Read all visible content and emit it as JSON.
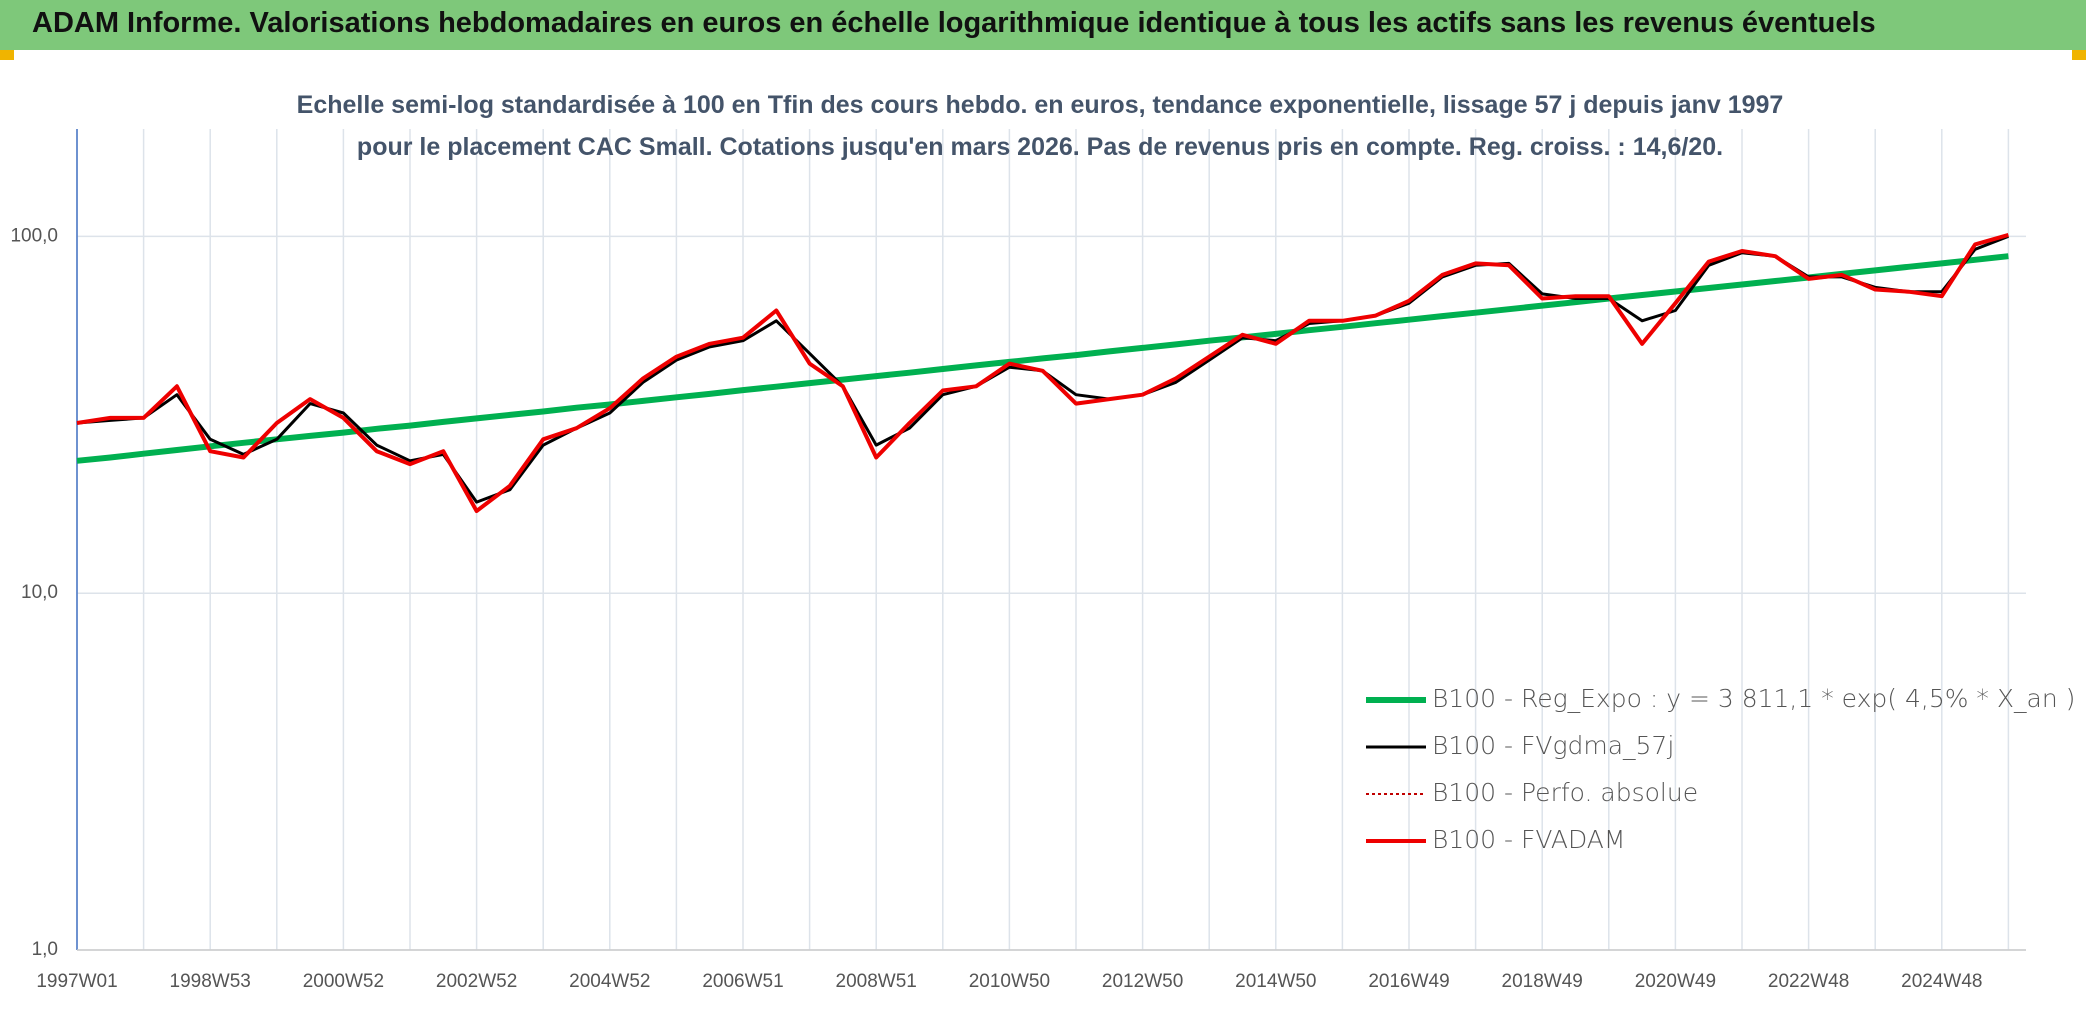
{
  "chart_data": {
    "type": "line",
    "title": "ADAM Informe. Valorisations hebdomadaires en euros en échelle logarithmique identique à tous les actifs sans les revenus éventuels",
    "subtitle": "Echelle semi-log standardisée à 100 en Tfin des cours hebdo. en euros, tendance exponentielle, lissage 57 j depuis janv 1997 pour le placement CAC Small. Cotations jusqu'en mars 2026. Pas de revenus pris en compte. Reg. croiss. : 14,6/20.",
    "categories": [
      "1997W01",
      null,
      null,
      null,
      "1998W53",
      null,
      null,
      null,
      "2000W52",
      null,
      null,
      null,
      "2002W52",
      null,
      null,
      null,
      "2004W52",
      null,
      null,
      null,
      "2006W51",
      null,
      null,
      null,
      "2008W51",
      null,
      null,
      null,
      "2010W50",
      null,
      null,
      null,
      "2012W50",
      null,
      null,
      null,
      "2014W50",
      null,
      null,
      null,
      "2016W49",
      null,
      null,
      null,
      "2018W49",
      null,
      null,
      null,
      "2020W49",
      null,
      null,
      null,
      "2022W48",
      null,
      null,
      null,
      "2024W48",
      null,
      null
    ],
    "log_scale": true,
    "ylim": [
      1,
      200
    ],
    "yticks": [
      {
        "value": 1,
        "label": "1,0"
      },
      {
        "value": 10,
        "label": "10,0"
      },
      {
        "value": 100,
        "label": "100,0"
      }
    ],
    "grid": true,
    "legend": "lower right",
    "series": [
      {
        "name": "B100 - Reg_Expo : y = 3 811,1 * exp( 4,5% *  X_an )",
        "color": "#00b050",
        "style": "solid",
        "width": 6,
        "values": [
          23.5,
          24.0,
          24.6,
          25.2,
          25.8,
          26.4,
          27.0,
          27.6,
          28.2,
          28.9,
          29.5,
          30.2,
          30.9,
          31.6,
          32.3,
          33.1,
          33.8,
          34.6,
          35.4,
          36.2,
          37.1,
          37.9,
          38.8,
          39.7,
          40.6,
          41.5,
          42.5,
          43.5,
          44.5,
          45.5,
          46.5,
          47.6,
          48.7,
          49.8,
          51.0,
          52.1,
          53.3,
          54.6,
          55.8,
          57.1,
          58.4,
          59.8,
          61.1,
          62.5,
          64.0,
          65.4,
          67.0,
          68.5,
          70.1,
          71.7,
          73.3,
          75.0,
          76.7,
          78.5,
          80.3,
          82.2,
          84.0,
          86.0,
          88.0
        ]
      },
      {
        "name": "B100 - FVgdma_57j",
        "color": "#000000",
        "style": "solid",
        "width": 3,
        "values": [
          30,
          30.5,
          31,
          36,
          27,
          24.5,
          27,
          34,
          32,
          26,
          23.5,
          24.5,
          18,
          19.5,
          26,
          29,
          32,
          39,
          45,
          49,
          51,
          58,
          47,
          38,
          26,
          29,
          36,
          38,
          43,
          42,
          36,
          35,
          36,
          39,
          45,
          52,
          51,
          57,
          58,
          60,
          65,
          77,
          83,
          84,
          69,
          67,
          67,
          58,
          62,
          83,
          90,
          88,
          77,
          77,
          72,
          70,
          70,
          92,
          100
        ]
      },
      {
        "name": "B100 - Perfo. absolue",
        "color": "#c00000",
        "style": "dotted",
        "width": 2,
        "values": [
          30,
          31,
          31,
          38,
          25,
          24,
          30,
          35,
          31,
          25,
          23,
          25,
          17,
          20,
          27,
          29,
          33,
          40,
          46,
          50,
          52,
          62,
          44,
          38,
          24,
          30,
          37,
          38,
          44,
          42,
          34,
          35,
          36,
          40,
          46,
          53,
          50,
          58,
          58,
          60,
          66,
          78,
          84,
          83,
          67,
          68,
          68,
          50,
          65,
          85,
          91,
          88,
          76,
          78,
          71,
          70,
          68,
          95,
          101
        ]
      },
      {
        "name": "B100 - FVADAM",
        "color": "#ee0000",
        "style": "solid",
        "width": 4,
        "values": [
          30,
          31,
          31,
          38,
          25,
          24,
          30,
          35,
          31,
          25,
          23,
          25,
          17,
          20,
          27,
          29,
          33,
          40,
          46,
          50,
          52,
          62,
          44,
          38,
          24,
          30,
          37,
          38,
          44,
          42,
          34,
          35,
          36,
          40,
          46,
          53,
          50,
          58,
          58,
          60,
          66,
          78,
          84,
          83,
          67,
          68,
          68,
          50,
          65,
          85,
          91,
          88,
          76,
          78,
          71,
          70,
          68,
          95,
          101
        ]
      }
    ]
  }
}
